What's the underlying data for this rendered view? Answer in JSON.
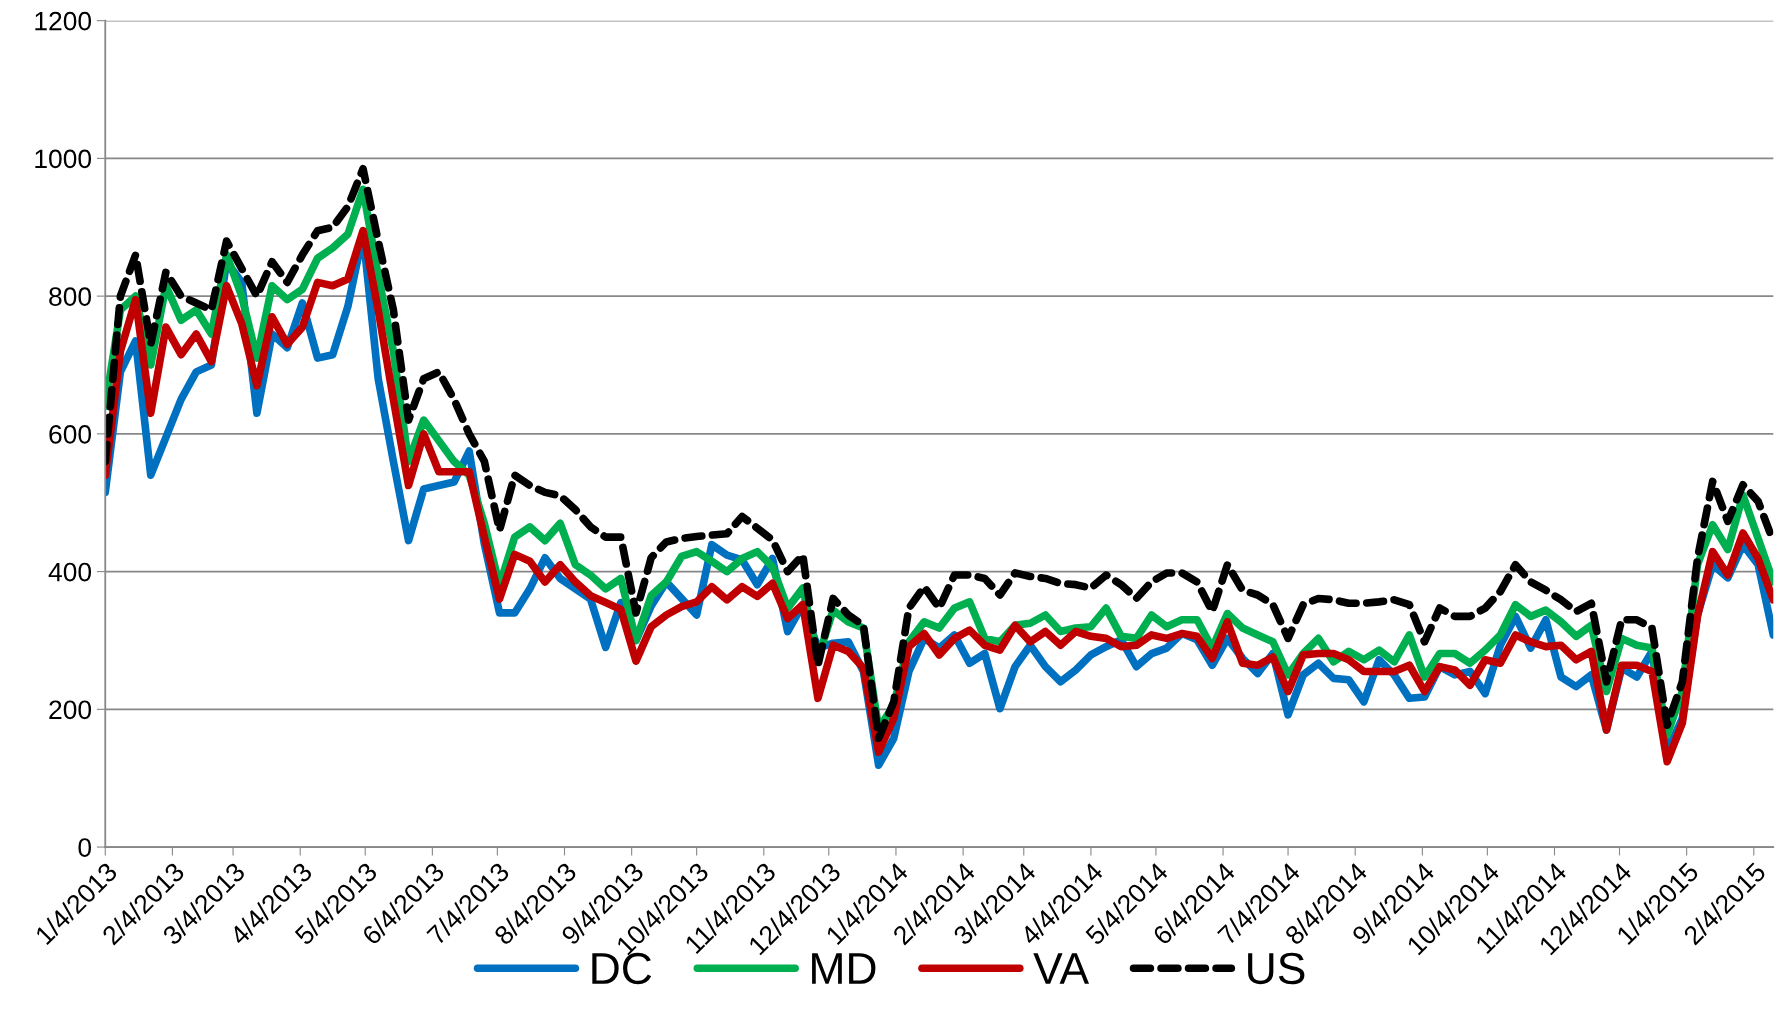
{
  "chart_data": {
    "type": "line",
    "x": [
      "2013-01-04",
      "2013-01-11",
      "2013-01-18",
      "2013-01-25",
      "2013-02-01",
      "2013-02-08",
      "2013-02-15",
      "2013-02-22",
      "2013-03-01",
      "2013-03-08",
      "2013-03-15",
      "2013-03-22",
      "2013-03-29",
      "2013-04-05",
      "2013-04-12",
      "2013-04-19",
      "2013-04-26",
      "2013-05-03",
      "2013-05-10",
      "2013-05-17",
      "2013-05-24",
      "2013-05-31",
      "2013-06-07",
      "2013-06-14",
      "2013-06-21",
      "2013-06-28",
      "2013-07-05",
      "2013-07-12",
      "2013-07-19",
      "2013-07-26",
      "2013-08-02",
      "2013-08-09",
      "2013-08-16",
      "2013-08-23",
      "2013-08-30",
      "2013-09-06",
      "2013-09-13",
      "2013-09-20",
      "2013-09-27",
      "2013-10-04",
      "2013-10-11",
      "2013-10-18",
      "2013-10-25",
      "2013-11-01",
      "2013-11-08",
      "2013-11-15",
      "2013-11-22",
      "2013-11-29",
      "2013-12-06",
      "2013-12-13",
      "2013-12-20",
      "2013-12-27",
      "2014-01-03",
      "2014-01-10",
      "2014-01-17",
      "2014-01-24",
      "2014-01-31",
      "2014-02-07",
      "2014-02-14",
      "2014-02-21",
      "2014-02-28",
      "2014-03-07",
      "2014-03-14",
      "2014-03-21",
      "2014-03-28",
      "2014-04-04",
      "2014-04-11",
      "2014-04-18",
      "2014-04-25",
      "2014-05-02",
      "2014-05-09",
      "2014-05-16",
      "2014-05-23",
      "2014-05-30",
      "2014-06-06",
      "2014-06-13",
      "2014-06-20",
      "2014-06-27",
      "2014-07-04",
      "2014-07-11",
      "2014-07-18",
      "2014-07-25",
      "2014-08-01",
      "2014-08-08",
      "2014-08-15",
      "2014-08-22",
      "2014-08-29",
      "2014-09-05",
      "2014-09-12",
      "2014-09-19",
      "2014-09-26",
      "2014-10-03",
      "2014-10-10",
      "2014-10-17",
      "2014-10-24",
      "2014-10-31",
      "2014-11-07",
      "2014-11-14",
      "2014-11-21",
      "2014-11-28",
      "2014-12-05",
      "2014-12-12",
      "2014-12-19",
      "2014-12-26",
      "2015-01-02",
      "2015-01-09",
      "2015-01-16",
      "2015-01-23",
      "2015-01-30",
      "2015-02-06",
      "2015-02-13"
    ],
    "series": [
      {
        "name": "DC",
        "color": "#0070c0",
        "line_style": "solid",
        "values": [
          515,
          690,
          735,
          540,
          595,
          650,
          690,
          700,
          850,
          820,
          630,
          745,
          725,
          790,
          710,
          715,
          785,
          890,
          680,
          560,
          445,
          520,
          525,
          530,
          575,
          440,
          340,
          340,
          375,
          420,
          390,
          375,
          360,
          290,
          355,
          300,
          350,
          385,
          361,
          337,
          439,
          424,
          417,
          381,
          419,
          313,
          352,
          289,
          296,
          298,
          255,
          119,
          158,
          255,
          303,
          289,
          308,
          267,
          281,
          201,
          262,
          293,
          262,
          240,
          257,
          279,
          291,
          301,
          262,
          281,
          289,
          310,
          301,
          264,
          303,
          274,
          252,
          281,
          192,
          250,
          267,
          245,
          243,
          211,
          272,
          250,
          216,
          218,
          262,
          250,
          255,
          223,
          293,
          335,
          289,
          330,
          247,
          233,
          250,
          170,
          260,
          247,
          284,
          138,
          187,
          337,
          410,
          391,
          439,
          410,
          308
        ]
      },
      {
        "name": "MD",
        "color": "#00b050",
        "line_style": "solid",
        "values": [
          640,
          780,
          800,
          700,
          815,
          765,
          780,
          745,
          860,
          800,
          710,
          815,
          795,
          810,
          855,
          870,
          890,
          955,
          830,
          720,
          560,
          620,
          590,
          560,
          540,
          470,
          380,
          450,
          465,
          445,
          470,
          410,
          395,
          375,
          390,
          300,
          365,
          385,
          422,
          429,
          415,
          400,
          419,
          429,
          407,
          347,
          376,
          274,
          344,
          327,
          318,
          172,
          206,
          298,
          327,
          318,
          347,
          356,
          303,
          298,
          322,
          325,
          337,
          313,
          318,
          320,
          347,
          306,
          303,
          337,
          320,
          330,
          330,
          289,
          339,
          318,
          308,
          298,
          250,
          281,
          303,
          269,
          284,
          272,
          286,
          269,
          308,
          247,
          281,
          281,
          267,
          286,
          308,
          352,
          335,
          344,
          327,
          306,
          322,
          226,
          303,
          293,
          289,
          163,
          226,
          410,
          468,
          432,
          511,
          448,
          385
        ]
      },
      {
        "name": "VA",
        "color": "#c00000",
        "line_style": "solid",
        "values": [
          540,
          720,
          795,
          630,
          755,
          715,
          745,
          705,
          815,
          760,
          670,
          770,
          730,
          755,
          820,
          815,
          825,
          895,
          780,
          650,
          525,
          600,
          545,
          545,
          545,
          450,
          360,
          425,
          415,
          385,
          410,
          385,
          365,
          355,
          345,
          270,
          320,
          337,
          349,
          356,
          378,
          359,
          378,
          364,
          383,
          332,
          352,
          216,
          293,
          284,
          260,
          138,
          187,
          291,
          310,
          279,
          303,
          315,
          293,
          286,
          322,
          298,
          313,
          293,
          313,
          306,
          303,
          291,
          293,
          308,
          303,
          310,
          306,
          274,
          327,
          267,
          264,
          276,
          226,
          279,
          281,
          281,
          272,
          255,
          255,
          255,
          264,
          226,
          262,
          257,
          235,
          272,
          267,
          308,
          298,
          291,
          293,
          272,
          284,
          170,
          264,
          264,
          255,
          124,
          180,
          335,
          429,
          395,
          456,
          419,
          359
        ]
      },
      {
        "name": "US",
        "color": "#000000",
        "line_style": "dashed",
        "values": [
          560,
          800,
          860,
          730,
          835,
          800,
          790,
          780,
          880,
          840,
          800,
          850,
          820,
          860,
          895,
          900,
          930,
          985,
          880,
          780,
          620,
          680,
          690,
          650,
          600,
          560,
          460,
          540,
          525,
          515,
          510,
          490,
          465,
          450,
          450,
          340,
          420,
          443,
          448,
          451,
          453,
          455,
          480,
          463,
          446,
          400,
          424,
          264,
          361,
          337,
          322,
          158,
          211,
          347,
          378,
          347,
          395,
          395,
          390,
          366,
          398,
          393,
          390,
          383,
          381,
          376,
          395,
          381,
          361,
          385,
          398,
          398,
          385,
          342,
          410,
          373,
          366,
          352,
          303,
          352,
          361,
          359,
          354,
          354,
          356,
          359,
          352,
          298,
          347,
          335,
          335,
          347,
          371,
          410,
          385,
          373,
          359,
          342,
          354,
          240,
          330,
          330,
          318,
          177,
          240,
          419,
          531,
          473,
          526,
          502,
          444
        ]
      }
    ],
    "xlim": [
      "2013-01-04",
      "2015-02-13"
    ],
    "xticks": [
      {
        "value": "2013-01-04",
        "label": "1/4/2013"
      },
      {
        "value": "2013-02-04",
        "label": "2/4/2013"
      },
      {
        "value": "2013-03-04",
        "label": "3/4/2013"
      },
      {
        "value": "2013-04-04",
        "label": "4/4/2013"
      },
      {
        "value": "2013-05-04",
        "label": "5/4/2013"
      },
      {
        "value": "2013-06-04",
        "label": "6/4/2013"
      },
      {
        "value": "2013-07-04",
        "label": "7/4/2013"
      },
      {
        "value": "2013-08-04",
        "label": "8/4/2013"
      },
      {
        "value": "2013-09-04",
        "label": "9/4/2013"
      },
      {
        "value": "2013-10-04",
        "label": "10/4/2013"
      },
      {
        "value": "2013-11-04",
        "label": "11/4/2013"
      },
      {
        "value": "2013-12-04",
        "label": "12/4/2013"
      },
      {
        "value": "2014-01-04",
        "label": "1/4/2014"
      },
      {
        "value": "2014-02-04",
        "label": "2/4/2014"
      },
      {
        "value": "2014-03-04",
        "label": "3/4/2014"
      },
      {
        "value": "2014-04-04",
        "label": "4/4/2014"
      },
      {
        "value": "2014-05-04",
        "label": "5/4/2014"
      },
      {
        "value": "2014-06-04",
        "label": "6/4/2014"
      },
      {
        "value": "2014-07-04",
        "label": "7/4/2014"
      },
      {
        "value": "2014-08-04",
        "label": "8/4/2014"
      },
      {
        "value": "2014-09-04",
        "label": "9/4/2014"
      },
      {
        "value": "2014-10-04",
        "label": "10/4/2014"
      },
      {
        "value": "2014-11-04",
        "label": "11/4/2014"
      },
      {
        "value": "2014-12-04",
        "label": "12/4/2014"
      },
      {
        "value": "2015-01-04",
        "label": "1/4/2015"
      },
      {
        "value": "2015-02-04",
        "label": "2/4/2015"
      }
    ],
    "ylim": [
      0,
      1200
    ],
    "yticks": [
      0,
      200,
      400,
      600,
      800,
      1000,
      1200
    ],
    "grid": "y",
    "legend": "bottom",
    "marker": "none"
  }
}
